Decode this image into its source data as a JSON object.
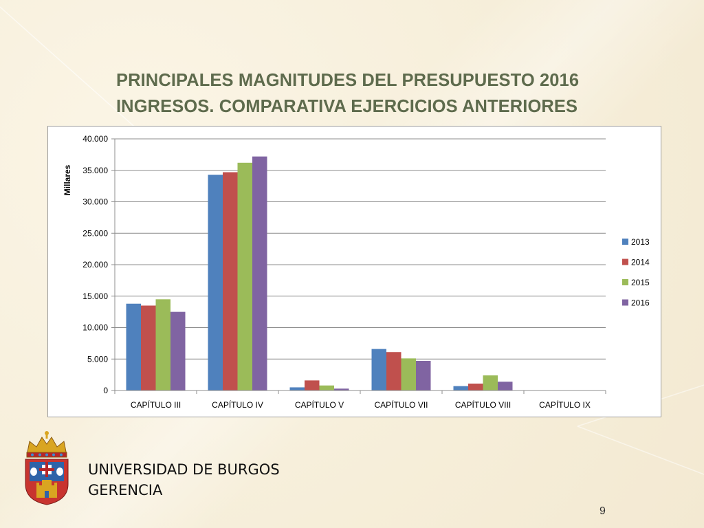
{
  "slide": {
    "title_line1": "PRINCIPALES MAGNITUDES DEL PRESUPUESTO 2016",
    "title_line2": "INGRESOS. COMPARATIVA EJERCICIOS ANTERIORES",
    "footer_line1": "UNIVERSIDAD DE BURGOS",
    "footer_line2": "GERENCIA",
    "page_number": "9"
  },
  "chart_data": {
    "type": "bar",
    "title": "",
    "xlabel": "",
    "ylabel": "Millares",
    "ylim": [
      0,
      40000
    ],
    "yticks": [
      0,
      5000,
      10000,
      15000,
      20000,
      25000,
      30000,
      35000,
      40000
    ],
    "ytick_labels": [
      "0",
      "5.000",
      "10.000",
      "15.000",
      "20.000",
      "25.000",
      "30.000",
      "35.000",
      "40.000"
    ],
    "grid": true,
    "legend_position": "right",
    "categories": [
      "CAPÍTULO III",
      "CAPÍTULO IV",
      "CAPÍTULO V",
      "CAPÍTULO VII",
      "CAPÍTULO VIII",
      "CAPÍTULO IX"
    ],
    "series": [
      {
        "name": "2013",
        "color": "#4f81bd",
        "values": [
          13800,
          34300,
          500,
          6600,
          700,
          0
        ]
      },
      {
        "name": "2014",
        "color": "#c0504d",
        "values": [
          13500,
          34700,
          1600,
          6100,
          1100,
          0
        ]
      },
      {
        "name": "2015",
        "color": "#9bbb59",
        "values": [
          14500,
          36200,
          800,
          5100,
          2400,
          0
        ]
      },
      {
        "name": "2016",
        "color": "#8064a2",
        "values": [
          12500,
          37200,
          300,
          4700,
          1400,
          0
        ]
      }
    ]
  }
}
